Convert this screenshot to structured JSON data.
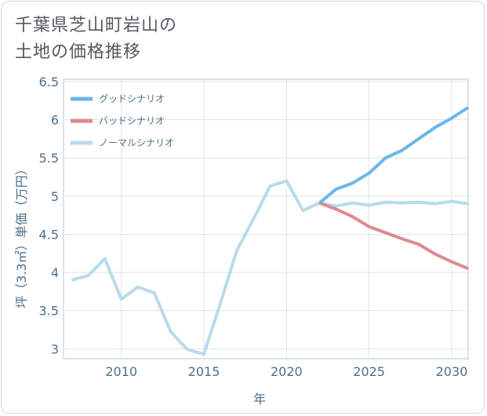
{
  "title_lines": [
    "千葉県芝山町岩山の",
    "土地の価格推移"
  ],
  "chart_data": {
    "type": "line",
    "title": "千葉県芝山町岩山の土地の価格推移",
    "xlabel": "年",
    "ylabel": "坪（3.3㎡）単価（万円）",
    "xlim": [
      2006.5,
      2031
    ],
    "ylim": [
      2.87,
      6.53
    ],
    "xticks": [
      2010,
      2015,
      2020,
      2025,
      2030
    ],
    "yticks": [
      3,
      3.5,
      4,
      4.5,
      5,
      5.5,
      6,
      6.5
    ],
    "ytick_labels": [
      "3",
      "3.5",
      "4",
      "4.5",
      "5",
      "5.5",
      "6",
      "6.5"
    ],
    "grid": true,
    "legend_position": "top-left",
    "series": [
      {
        "name": "グッドシナリオ",
        "color": "#6cb6ea",
        "x": [
          2022,
          2023,
          2024,
          2025,
          2026,
          2027,
          2028,
          2029,
          2030,
          2031
        ],
        "y": [
          4.91,
          5.09,
          5.17,
          5.3,
          5.5,
          5.6,
          5.75,
          5.9,
          6.02,
          6.16
        ]
      },
      {
        "name": "バッドシナリオ",
        "color": "#dc8a90",
        "x": [
          2022,
          2023,
          2024,
          2025,
          2026,
          2027,
          2028,
          2029,
          2030,
          2031
        ],
        "y": [
          4.91,
          4.83,
          4.73,
          4.6,
          4.52,
          4.44,
          4.37,
          4.24,
          4.14,
          4.05
        ]
      },
      {
        "name": "ノーマルシナリオ",
        "color": "#b9dbea",
        "x": [
          2007,
          2008,
          2009,
          2010,
          2011,
          2012,
          2013,
          2014,
          2015,
          2016,
          2017,
          2018,
          2019,
          2020,
          2021,
          2022,
          2023,
          2024,
          2025,
          2026,
          2027,
          2028,
          2029,
          2030,
          2031
        ],
        "y": [
          3.9,
          3.96,
          4.18,
          3.65,
          3.81,
          3.73,
          3.22,
          2.99,
          2.93,
          3.6,
          4.29,
          4.7,
          5.13,
          5.2,
          4.81,
          4.91,
          4.87,
          4.91,
          4.88,
          4.92,
          4.91,
          4.92,
          4.9,
          4.93,
          4.9
        ]
      }
    ]
  }
}
